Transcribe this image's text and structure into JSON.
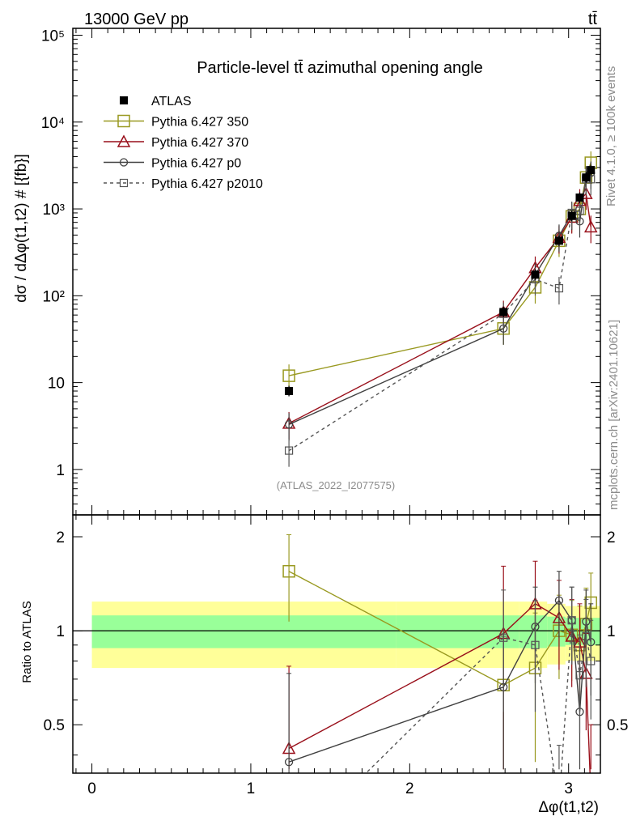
{
  "header": {
    "energy_label": "13000 GeV pp",
    "process_label": "tt̄"
  },
  "side_labels": {
    "rivet": "Rivet 4.1.0, ≥ 100k events",
    "mcplots": "mcplots.cern.ch [arXiv:2401.10621]"
  },
  "chart_data": {
    "type": "line",
    "title": "Particle-level tt̄ azimuthal opening angle",
    "analysis_tag": "(ATLAS_2022_I2077575)",
    "xlabel": "Δφ(t1,t2)",
    "ylabel": "dσ / dΔφ(t1,t2) # [{fb}]",
    "ratio_ylabel": "Ratio to ATLAS",
    "xlim": [
      -0.12,
      3.2
    ],
    "ylim": [
      0.3,
      120000
    ],
    "yscale": "log",
    "ratio_ylim": [
      0.35,
      2.35
    ],
    "x_ticks": [
      "0",
      "1",
      "2",
      "3"
    ],
    "y_ticks": [
      "1",
      "10",
      "10²",
      "10³",
      "10⁴",
      "10⁵"
    ],
    "ratio_ticks": [
      "0.5",
      "1",
      "2"
    ],
    "data": {
      "name": "ATLAS",
      "x": [
        1.24,
        2.59,
        2.79,
        2.94,
        3.02,
        3.07,
        3.11,
        3.14
      ],
      "y": [
        8,
        65,
        175,
        430,
        830,
        1350,
        2300,
        2800
      ],
      "band_inner": [
        0.12,
        0.12,
        0.12,
        0.11,
        0.1,
        0.1,
        0.1,
        0.1
      ],
      "band_outer": [
        0.24,
        0.24,
        0.24,
        0.22,
        0.2,
        0.2,
        0.2,
        0.2
      ]
    },
    "series": [
      {
        "name": "Pythia 6.427 350",
        "color": "#999920",
        "marker": "square-open",
        "dash": "",
        "x": [
          1.24,
          2.59,
          2.79,
          2.94,
          3.02,
          3.07,
          3.11,
          3.14
        ],
        "y": [
          12,
          42,
          125,
          430,
          820,
          1000,
          2300,
          3400
        ],
        "ratio": [
          1.55,
          0.67,
          0.76,
          1.0,
          0.97,
          0.9,
          1.05,
          1.23
        ],
        "ratio_err": [
          0.48,
          0.33,
          0.38,
          0.3,
          0.28,
          0.3,
          0.32,
          0.3
        ]
      },
      {
        "name": "Pythia 6.427 370",
        "color": "#990f1a",
        "marker": "triangle-open",
        "dash": "",
        "x": [
          1.24,
          2.59,
          2.79,
          2.94,
          3.02,
          3.07,
          3.11,
          3.14
        ],
        "y": [
          3.4,
          65,
          210,
          470,
          800,
          1250,
          1500,
          620
        ],
        "ratio": [
          0.42,
          0.98,
          1.22,
          1.1,
          0.96,
          0.92,
          0.73,
          0.3
        ],
        "ratio_err": [
          0.35,
          0.63,
          0.45,
          0.35,
          0.3,
          0.3,
          0.25,
          0.2
        ]
      },
      {
        "name": "Pythia 6.427 p0",
        "color": "#404040",
        "marker": "circle-open",
        "dash": "",
        "x": [
          1.24,
          2.59,
          2.79,
          2.94,
          3.02,
          3.07,
          3.11,
          3.14
        ],
        "y": [
          3.3,
          42,
          175,
          490,
          880,
          720,
          2300,
          2600
        ],
        "ratio": [
          0.38,
          0.66,
          1.03,
          1.25,
          1.08,
          0.55,
          1.07,
          0.92
        ],
        "ratio_err": [
          0.35,
          0.3,
          0.35,
          0.3,
          0.3,
          0.25,
          0.28,
          0.3
        ]
      },
      {
        "name": "Pythia 6.427 p2010",
        "color": "#555555",
        "marker": "square-small",
        "dash": "4,4",
        "x": [
          1.24,
          2.59,
          2.79,
          2.94,
          3.02,
          3.07,
          3.11,
          3.14
        ],
        "y": [
          1.65,
          62,
          155,
          122,
          900,
          950,
          2200,
          2200
        ],
        "ratio": [
          0.2,
          0.95,
          0.9,
          0.28,
          1.08,
          0.72,
          0.96,
          0.8
        ],
        "ratio_err": [
          0.15,
          0.4,
          0.35,
          0.15,
          0.3,
          0.25,
          0.3,
          0.28
        ]
      }
    ]
  }
}
